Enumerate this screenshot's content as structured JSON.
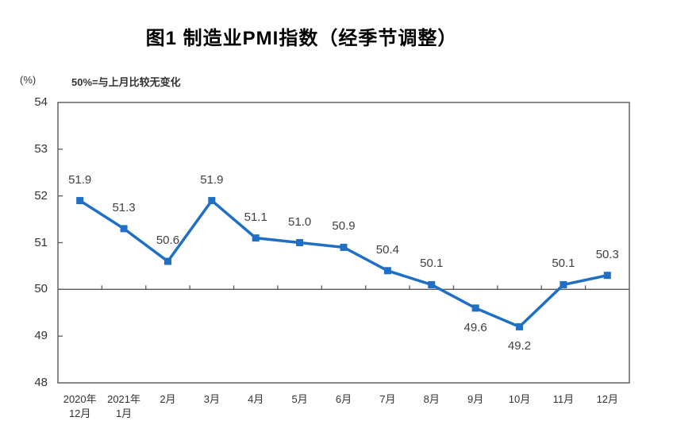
{
  "chart_data": {
    "type": "line",
    "title": "图1 制造业PMI指数（经季节调整）",
    "unit_label": "(%)",
    "note": "50%=与上月比较无变化",
    "categories": [
      "2020年\n12月",
      "2021年\n1月",
      "2月",
      "3月",
      "4月",
      "5月",
      "6月",
      "7月",
      "8月",
      "9月",
      "10月",
      "11月",
      "12月"
    ],
    "values": [
      51.9,
      51.3,
      50.6,
      51.9,
      51.1,
      51.0,
      50.9,
      50.4,
      50.1,
      49.6,
      49.2,
      50.1,
      50.3
    ],
    "data_labels": [
      "51.9",
      "51.3",
      "50.6",
      "51.9",
      "51.1",
      "51.0",
      "50.9",
      "50.4",
      "50.1",
      "49.6",
      "49.2",
      "50.1",
      "50.3"
    ],
    "labels_below_indices": [
      9,
      10
    ],
    "y_ticks": [
      48,
      49,
      50,
      51,
      52,
      53,
      54
    ],
    "ylim": [
      48,
      54
    ],
    "baseline": 50,
    "grid": "off",
    "legend": "none",
    "line_color": "#1F6FC5",
    "axis_color": "#595959",
    "label_color": "#404040"
  }
}
